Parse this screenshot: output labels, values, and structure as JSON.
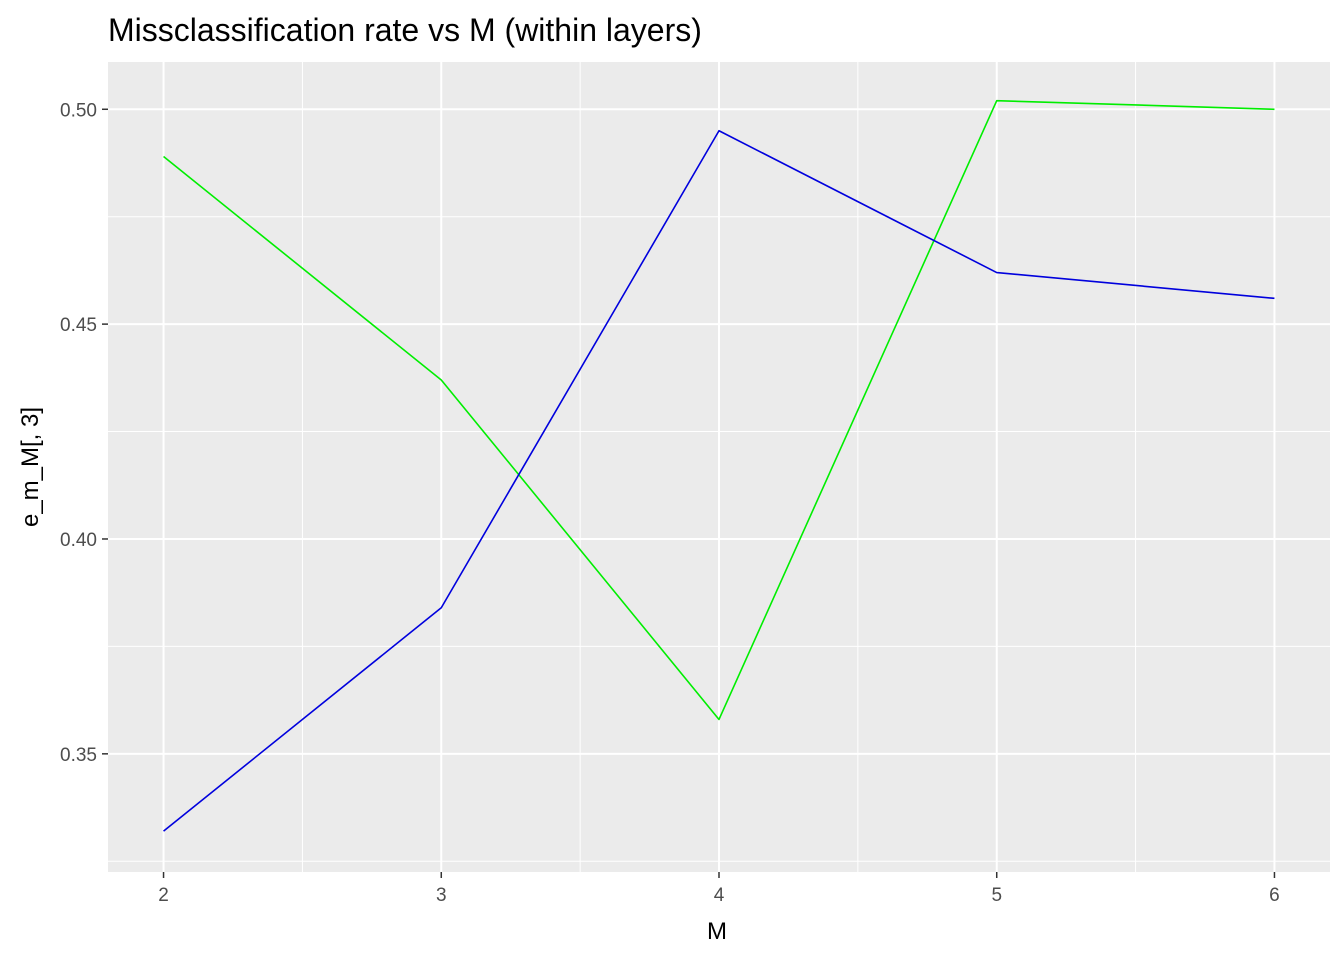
{
  "chart_data": {
    "type": "line",
    "title": "Missclassification rate vs M (within layers)",
    "xlabel": "M",
    "ylabel": "e_m_M[, 3]",
    "x": [
      2,
      3,
      4,
      5,
      6
    ],
    "x_ticks": [
      "2",
      "3",
      "4",
      "5",
      "6"
    ],
    "y_ticks": [
      "0.35",
      "0.40",
      "0.45",
      "0.50"
    ],
    "xlim": [
      1.8,
      6.2
    ],
    "ylim": [
      0.3225,
      0.511
    ],
    "grid": true,
    "legend": "none",
    "series": [
      {
        "color": "#00ee00",
        "values": [
          0.489,
          0.437,
          0.358,
          0.502,
          0.5
        ]
      },
      {
        "color": "#0000dd",
        "values": [
          0.332,
          0.384,
          0.495,
          0.462,
          0.456
        ]
      }
    ]
  }
}
